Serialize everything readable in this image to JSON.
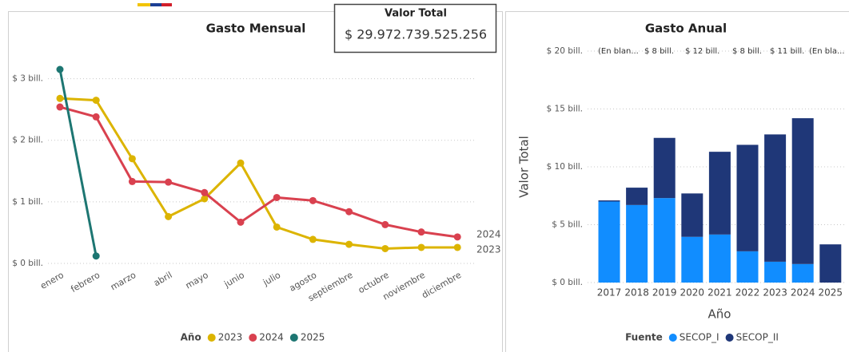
{
  "card": {
    "title": "Valor Total",
    "value": "$ 29.972.739.525.256"
  },
  "chart_data": [
    {
      "type": "line",
      "title": "Gasto Mensual",
      "categories": [
        "enero",
        "febrero",
        "marzo",
        "abril",
        "mayo",
        "junio",
        "julio",
        "agosto",
        "septiembre",
        "octubre",
        "noviembre",
        "diciembre"
      ],
      "legend_title": "Año",
      "series": [
        {
          "name": "2023",
          "color": "#dcb400",
          "values": [
            2.68,
            2.65,
            1.7,
            0.76,
            1.05,
            1.63,
            0.59,
            0.39,
            0.31,
            0.24,
            0.26,
            0.26
          ]
        },
        {
          "name": "2024",
          "color": "#d9414f",
          "values": [
            2.54,
            2.38,
            1.33,
            1.32,
            1.15,
            0.67,
            1.07,
            1.02,
            0.84,
            0.63,
            0.51,
            0.43
          ]
        },
        {
          "name": "2025",
          "color": "#1d7672",
          "values": [
            3.15,
            0.12,
            null,
            null,
            null,
            null,
            null,
            null,
            null,
            null,
            null,
            null
          ]
        }
      ],
      "ylim": [
        0,
        3.5
      ],
      "yticks": [
        {
          "value": 0,
          "label": "$ 0 bill."
        },
        {
          "value": 1,
          "label": "$ 1 bill."
        },
        {
          "value": 2,
          "label": "$ 2 bill."
        },
        {
          "value": 3,
          "label": "$ 3 bill."
        }
      ],
      "grid": true
    },
    {
      "type": "stacked_bar",
      "title": "Gasto Anual",
      "categories": [
        "2017",
        "2018",
        "2019",
        "2020",
        "2021",
        "2022",
        "2023",
        "2024",
        "2025"
      ],
      "x_label": "Año",
      "y_label": "Valor Total",
      "legend_title": "Fuente",
      "annotations": [
        "(En blan...",
        "$ 8 bill.",
        "$ 12 bill.",
        "$ 8 bill.",
        "$ 11 bill.",
        "(En bla..."
      ],
      "series": [
        {
          "name": "SECOP_I",
          "color": "#118dff",
          "values": [
            7.0,
            6.7,
            7.3,
            3.95,
            4.15,
            2.7,
            1.8,
            1.6,
            null
          ]
        },
        {
          "name": "SECOP_II",
          "color": "#1f3778",
          "values": [
            0.1,
            1.5,
            5.2,
            3.75,
            7.15,
            9.2,
            11.0,
            12.6,
            3.3
          ]
        }
      ],
      "ylim": [
        0,
        20
      ],
      "yticks": [
        {
          "value": 0,
          "label": "$ 0 bill."
        },
        {
          "value": 5,
          "label": "$ 5 bill."
        },
        {
          "value": 10,
          "label": "$ 10 bill."
        },
        {
          "value": 15,
          "label": "$ 15 bill."
        },
        {
          "value": 20,
          "label": "$ 20 bill."
        }
      ],
      "grid": true
    }
  ]
}
